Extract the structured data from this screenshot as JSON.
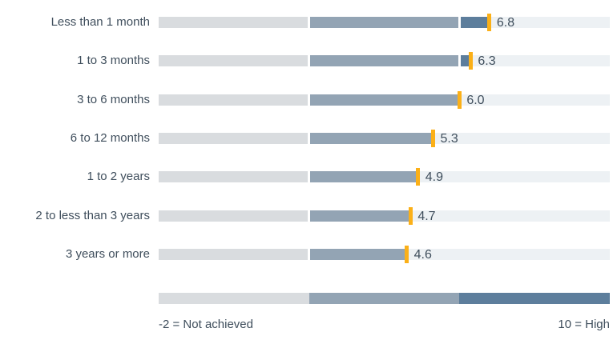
{
  "colors": {
    "text": "#3f4e5c",
    "background": "#ffffff",
    "band_not_achieved": "#d9dcdf",
    "band_middle": "#93a4b4",
    "band_high": "#5d7e9c",
    "track_remainder": "#edf1f4",
    "marker": "#fbb018"
  },
  "chart_data": {
    "type": "bar",
    "variant": "bullet",
    "orientation": "horizontal",
    "categories": [
      "Less than 1 month",
      "1 to 3 months",
      "3 to 6 months",
      "6 to 12 months",
      "1 to 2 years",
      "2 to less than 3 years",
      "3 years or more"
    ],
    "values": [
      6.8,
      6.3,
      6.0,
      5.3,
      4.9,
      4.7,
      4.6
    ],
    "value_labels": [
      "6.8",
      "6.3",
      "6.0",
      "5.3",
      "4.9",
      "4.7",
      "4.6"
    ],
    "xlim": [
      -2,
      10
    ],
    "bands": [
      {
        "from": -2,
        "to": 2,
        "color": "#d9dcdf"
      },
      {
        "from": 2,
        "to": 6,
        "color": "#93a4b4"
      },
      {
        "from": 6,
        "to": 10,
        "color": "#5d7e9c"
      }
    ],
    "grid": false,
    "legend": {
      "position": "bottom",
      "left_label": "-2 = Not achieved",
      "right_label": "10 = High"
    }
  }
}
